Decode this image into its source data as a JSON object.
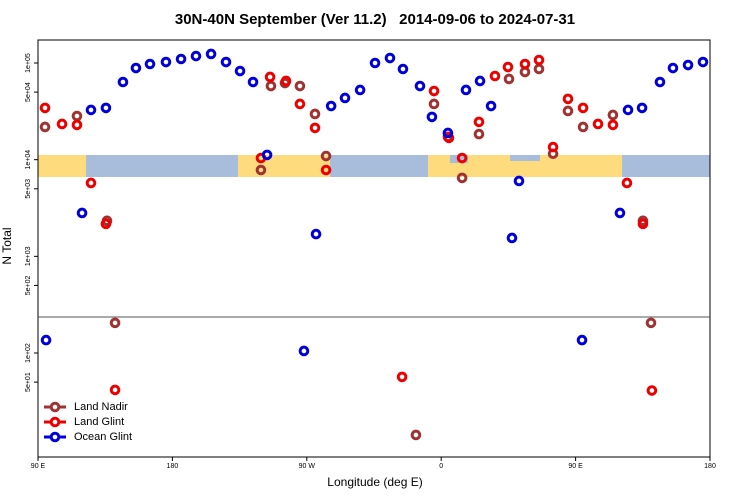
{
  "chart_data": {
    "type": "scatter",
    "title": "30N-40N September (Ver 11.2)   2014-09-06 to 2024-07-31",
    "x_label": "Longitude (deg E)",
    "y_label": "N Total",
    "log_y": true,
    "legend": "bottom-left",
    "xlim": [
      90,
      540
    ],
    "xticks": [
      {
        "value": 90,
        "label": "90 E"
      },
      180,
      {
        "value": 270,
        "label": "90 W"
      },
      {
        "value": 360,
        "label": "0"
      },
      {
        "value": 450,
        "label": "90 E"
      },
      {
        "value": 540,
        "label": "180"
      }
    ],
    "ylim": [
      8.4,
      173000
    ],
    "yticks": [
      {
        "value": 100000,
        "label": "1e+05"
      },
      {
        "value": 50000,
        "label": "5e+04"
      },
      {
        "value": 10000,
        "label": "1e+04"
      },
      {
        "value": 5000,
        "label": "5e+03"
      },
      {
        "value": 1000,
        "label": "1e+03"
      },
      {
        "value": 500,
        "label": "5e+02"
      },
      {
        "value": 100,
        "label": "1e+02"
      },
      {
        "value": 50,
        "label": "5e+01"
      }
    ],
    "series": [
      {
        "name": "Land Nadir",
        "color": "#a03232",
        "x": [
          94.7,
          116.1,
          136.2,
          141.6,
          239.3,
          246,
          255.4,
          265.4,
          275.5,
          282.9,
          343.1,
          355.2,
          364.5,
          374,
          385.3,
          405.4,
          416.1,
          425.5,
          434.9,
          444.9,
          455,
          475,
          495.1,
          500.5
        ],
        "values": [
          21800,
          28300,
          2330,
          205,
          7820,
          57800,
          62100,
          57800,
          29700,
          10900,
          14.2,
          37700,
          17200,
          6480,
          18400,
          68400,
          80700,
          86700,
          11500,
          31900,
          21800,
          29000,
          2330,
          205
        ]
      },
      {
        "name": "Land Glint",
        "color": "#ee0000",
        "x": [
          94.7,
          106.1,
          116.1,
          125.5,
          135.5,
          141.6,
          239.3,
          245.4,
          256.1,
          265.4,
          275.5,
          282.9,
          333.8,
          355.2,
          365.2,
          374,
          385.3,
          396,
          404.7,
          416.1,
          425.5,
          434.9,
          444.9,
          455,
          465,
          475,
          484.4,
          495.1,
          501.1
        ],
        "values": [
          34300,
          23400,
          22900,
          5740,
          2170,
          41.5,
          10400,
          71700,
          65200,
          37700,
          21300,
          7820,
          56.6,
          51300,
          16800,
          10400,
          24600,
          73400,
          90900,
          97700,
          107400,
          13500,
          42500,
          34300,
          23400,
          22900,
          5740,
          2170,
          40.9
        ]
      },
      {
        "name": "Ocean Glint",
        "color": "#0000dd",
        "x": [
          95.4,
          119.5,
          125.5,
          135.5,
          146.9,
          155.6,
          165,
          175.7,
          185.8,
          195.8,
          205.9,
          215.9,
          225.3,
          234,
          243.4,
          268.1,
          276.2,
          286.3,
          295.6,
          305.7,
          315.7,
          325.7,
          334.4,
          345.8,
          353.8,
          364.5,
          376.6,
          386,
          393.4,
          407.4,
          412.1,
          454.3,
          479.7,
          485.1,
          494.5,
          506.5,
          515.2,
          525.3,
          535.3
        ],
        "values": [
          136,
          2810,
          32700,
          34300,
          63600,
          88700,
          97700,
          102400,
          110000,
          118000,
          124000,
          102400,
          82600,
          63600,
          11200,
          105,
          1700,
          35900,
          43500,
          52600,
          100000,
          112600,
          86700,
          57800,
          27700,
          18900,
          52600,
          65200,
          35900,
          1550,
          6020,
          136,
          2810,
          32700,
          34300,
          63600,
          88700,
          95300,
          102400
        ]
      }
    ]
  }
}
